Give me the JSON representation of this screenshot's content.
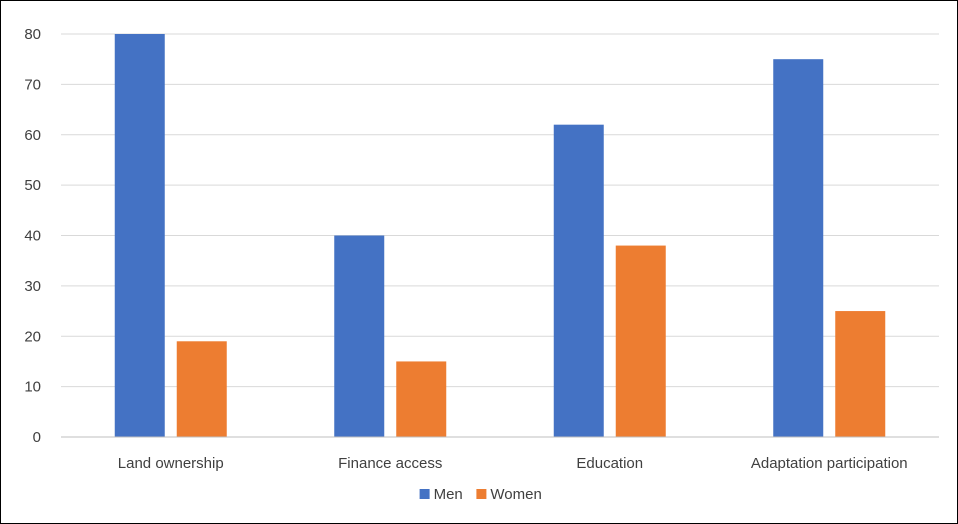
{
  "chart_data": {
    "type": "bar",
    "categories": [
      "Land ownership",
      "Finance access",
      "Education",
      "Adaptation participation"
    ],
    "series": [
      {
        "name": "Men",
        "values": [
          80,
          40,
          62,
          75
        ],
        "color": "#4472C4"
      },
      {
        "name": "Women",
        "values": [
          19,
          15,
          38,
          25
        ],
        "color": "#ED7D31"
      }
    ],
    "ylim": [
      0,
      80
    ],
    "yticks": [
      0,
      10,
      20,
      30,
      40,
      50,
      60,
      70,
      80
    ],
    "grid": true,
    "legend": "bottom",
    "gridline_color": "#D9D9D9",
    "axis_color": "#BFBFBF",
    "text_color": "#404040"
  }
}
